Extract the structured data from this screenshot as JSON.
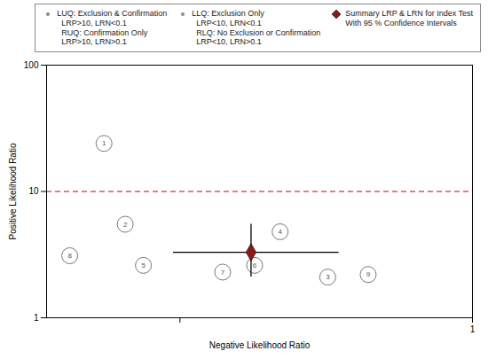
{
  "chart_data": {
    "type": "scatter",
    "xlabel": "Negative Likelihood Ratio",
    "ylabel": "Positive Likelihood Ratio",
    "log": true,
    "xlim": [
      0.035,
      1.0
    ],
    "ylim": [
      1.0,
      100.0
    ],
    "xticks": [
      {
        "value": 0.1,
        "label": null
      },
      1
    ],
    "yticks": [
      1,
      10,
      100
    ],
    "grid": false,
    "legend": "upper right",
    "reference_lines": [
      {
        "y": 10,
        "color": "#CC0000",
        "line_style": "dashed"
      }
    ],
    "series": [
      {
        "type": "scatter",
        "marker": "circle",
        "color": "#555555",
        "x": [
          0.055,
          0.065,
          0.042,
          0.075,
          0.14,
          0.22,
          0.18,
          0.32,
          0.44
        ],
        "values": [
          24.0,
          5.5,
          3.1,
          2.6,
          2.3,
          4.8,
          2.6,
          2.1,
          2.2
        ],
        "labels": [
          "1",
          "2",
          "8",
          "5",
          "7",
          "4",
          "6",
          "3",
          "9"
        ]
      },
      {
        "name": "Summary LRP & LRN for Index Test\nWith 95 % Confidence Intervals",
        "type": "errorbar",
        "marker": "diamond",
        "color": "#8B1A1A",
        "x": [
          0.175
        ],
        "values": [
          3.3
        ],
        "x_low": [
          0.095
        ],
        "x_high": [
          0.35
        ],
        "y_low": [
          2.1
        ],
        "y_high": [
          5.5
        ]
      }
    ],
    "annotations": [
      {
        "text": "LUQ: Exclusion & Confirmation\n  LRP>10, LRN<0.1\n  RUQ: Confirmation Only\n  LRP>10, LRN>0.1",
        "color": "#888888",
        "marker": "dot"
      },
      {
        "text": "LLQ: Exclusion Only\n  LRP<10, LRN<0.1\n  RLQ: No Exclusion or Confirmation\n  LRP<10, LRN>0.1",
        "color": "#888888",
        "marker": "dot"
      }
    ]
  }
}
